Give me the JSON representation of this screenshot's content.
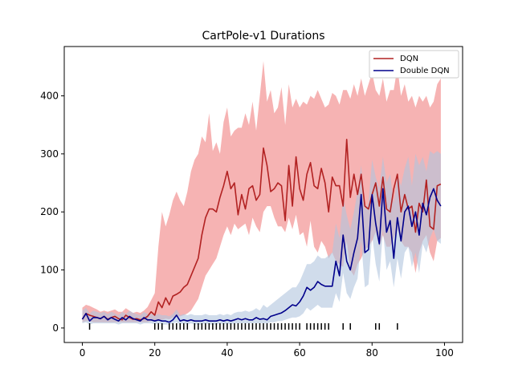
{
  "chart_data": {
    "type": "line",
    "title": "CartPole-v1 Durations",
    "xlabel": "",
    "ylabel": "",
    "xlim": [
      -5,
      105
    ],
    "ylim": [
      -25,
      485
    ],
    "xticks": [
      0,
      20,
      40,
      60,
      80,
      100
    ],
    "yticks": [
      0,
      100,
      200,
      300,
      400
    ],
    "grid": false,
    "legend_position": "top-right",
    "series": [
      {
        "name": "DQN",
        "color": "#b22222",
        "band_color": "#f08080",
        "x": [
          0,
          1,
          2,
          3,
          4,
          5,
          6,
          7,
          8,
          9,
          10,
          11,
          12,
          13,
          14,
          15,
          16,
          17,
          18,
          19,
          20,
          21,
          22,
          23,
          24,
          25,
          26,
          27,
          28,
          29,
          30,
          31,
          32,
          33,
          34,
          35,
          36,
          37,
          38,
          39,
          40,
          41,
          42,
          43,
          44,
          45,
          46,
          47,
          48,
          49,
          50,
          51,
          52,
          53,
          54,
          55,
          56,
          57,
          58,
          59,
          60,
          61,
          62,
          63,
          64,
          65,
          66,
          67,
          68,
          69,
          70,
          71,
          72,
          73,
          74,
          75,
          76,
          77,
          78,
          79,
          80,
          81,
          82,
          83,
          84,
          85,
          86,
          87,
          88,
          89,
          90,
          91,
          92,
          93,
          94,
          95,
          96,
          97,
          98,
          99
        ],
        "y": [
          15,
          25,
          22,
          20,
          18,
          16,
          20,
          15,
          18,
          20,
          16,
          14,
          22,
          18,
          15,
          16,
          14,
          16,
          20,
          28,
          22,
          45,
          35,
          52,
          40,
          55,
          58,
          62,
          70,
          75,
          90,
          105,
          120,
          160,
          190,
          205,
          205,
          200,
          225,
          245,
          270,
          240,
          250,
          195,
          230,
          205,
          240,
          245,
          220,
          230,
          310,
          280,
          235,
          240,
          250,
          245,
          185,
          280,
          210,
          295,
          240,
          220,
          265,
          285,
          245,
          240,
          275,
          250,
          200,
          260,
          245,
          245,
          210,
          325,
          225,
          265,
          230,
          265,
          210,
          205,
          230,
          250,
          210,
          260,
          205,
          200,
          240,
          265,
          200,
          230,
          205,
          210,
          165,
          215,
          200,
          255,
          175,
          170,
          245,
          248
        ],
        "upper": [
          35,
          40,
          38,
          35,
          32,
          28,
          30,
          28,
          30,
          32,
          28,
          28,
          34,
          30,
          26,
          28,
          26,
          30,
          36,
          48,
          60,
          140,
          200,
          175,
          195,
          220,
          235,
          220,
          210,
          235,
          270,
          290,
          300,
          330,
          320,
          370,
          305,
          320,
          300,
          355,
          380,
          330,
          340,
          345,
          345,
          370,
          350,
          390,
          340,
          400,
          460,
          390,
          410,
          370,
          380,
          415,
          350,
          420,
          380,
          395,
          380,
          390,
          385,
          400,
          395,
          410,
          395,
          380,
          385,
          405,
          400,
          385,
          410,
          410,
          395,
          420,
          400,
          430,
          400,
          420,
          440,
          410,
          400,
          430,
          390,
          410,
          410,
          450,
          400,
          420,
          390,
          400,
          380,
          400,
          390,
          400,
          380,
          390,
          420,
          430
        ],
        "lower": [
          10,
          12,
          12,
          10,
          10,
          10,
          10,
          10,
          10,
          10,
          10,
          10,
          10,
          10,
          10,
          10,
          10,
          10,
          10,
          12,
          12,
          14,
          14,
          16,
          15,
          18,
          20,
          20,
          22,
          25,
          30,
          40,
          50,
          70,
          90,
          100,
          110,
          120,
          140,
          160,
          175,
          160,
          180,
          170,
          175,
          180,
          160,
          190,
          175,
          165,
          200,
          210,
          210,
          190,
          175,
          175,
          165,
          190,
          170,
          195,
          160,
          165,
          140,
          185,
          140,
          130,
          150,
          140,
          120,
          130,
          115,
          110,
          105,
          150,
          100,
          90,
          110,
          120,
          135,
          140,
          150,
          165,
          140,
          160,
          140,
          140,
          155,
          170,
          150,
          140,
          140,
          130,
          95,
          130,
          150,
          160,
          130,
          115,
          150,
          155
        ]
      },
      {
        "name": "Double DQN",
        "color": "#00008b",
        "band_color": "#b0c4de",
        "x": [
          0,
          1,
          2,
          3,
          4,
          5,
          6,
          7,
          8,
          9,
          10,
          11,
          12,
          13,
          14,
          15,
          16,
          17,
          18,
          19,
          20,
          21,
          22,
          23,
          24,
          25,
          26,
          27,
          28,
          29,
          30,
          31,
          32,
          33,
          34,
          35,
          36,
          37,
          38,
          39,
          40,
          41,
          42,
          43,
          44,
          45,
          46,
          47,
          48,
          49,
          50,
          51,
          52,
          53,
          54,
          55,
          56,
          57,
          58,
          59,
          60,
          61,
          62,
          63,
          64,
          65,
          66,
          67,
          68,
          69,
          70,
          71,
          72,
          73,
          74,
          75,
          76,
          77,
          78,
          79,
          80,
          81,
          82,
          83,
          84,
          85,
          86,
          87,
          88,
          89,
          90,
          91,
          92,
          93,
          94,
          95,
          96,
          97,
          98,
          99
        ],
        "y": [
          15,
          25,
          12,
          18,
          18,
          16,
          20,
          14,
          18,
          15,
          12,
          18,
          14,
          20,
          16,
          14,
          12,
          18,
          14,
          14,
          12,
          14,
          12,
          12,
          10,
          14,
          22,
          12,
          14,
          12,
          14,
          12,
          12,
          12,
          14,
          12,
          12,
          12,
          14,
          12,
          14,
          12,
          14,
          16,
          14,
          16,
          14,
          14,
          18,
          15,
          16,
          14,
          20,
          22,
          24,
          26,
          30,
          35,
          40,
          38,
          45,
          55,
          70,
          65,
          70,
          80,
          75,
          72,
          72,
          72,
          115,
          90,
          160,
          115,
          100,
          130,
          155,
          230,
          130,
          135,
          230,
          180,
          145,
          240,
          165,
          185,
          120,
          190,
          150,
          200,
          210,
          175,
          200,
          160,
          215,
          195,
          225,
          240,
          220,
          210
        ],
        "upper": [
          30,
          35,
          25,
          30,
          28,
          26,
          28,
          24,
          28,
          25,
          22,
          28,
          24,
          30,
          26,
          24,
          22,
          28,
          24,
          24,
          22,
          24,
          22,
          22,
          20,
          24,
          32,
          22,
          24,
          22,
          24,
          22,
          22,
          22,
          24,
          22,
          22,
          22,
          24,
          22,
          24,
          22,
          26,
          28,
          28,
          30,
          28,
          30,
          34,
          30,
          40,
          35,
          40,
          45,
          50,
          55,
          60,
          65,
          70,
          70,
          80,
          95,
          110,
          110,
          115,
          125,
          120,
          120,
          125,
          130,
          180,
          155,
          225,
          195,
          170,
          200,
          235,
          280,
          205,
          215,
          290,
          260,
          240,
          295,
          250,
          265,
          215,
          265,
          245,
          275,
          295,
          245,
          300,
          280,
          295,
          270,
          305,
          300,
          305,
          300
        ],
        "lower": [
          8,
          10,
          6,
          8,
          8,
          8,
          8,
          8,
          8,
          8,
          6,
          8,
          8,
          8,
          8,
          8,
          6,
          8,
          8,
          8,
          6,
          8,
          6,
          6,
          6,
          8,
          10,
          6,
          8,
          6,
          8,
          6,
          6,
          6,
          8,
          6,
          6,
          6,
          8,
          6,
          8,
          6,
          8,
          8,
          8,
          8,
          8,
          8,
          8,
          8,
          8,
          8,
          10,
          10,
          12,
          12,
          14,
          16,
          18,
          18,
          20,
          25,
          35,
          30,
          35,
          40,
          35,
          35,
          35,
          35,
          60,
          45,
          95,
          60,
          50,
          70,
          85,
          150,
          70,
          75,
          160,
          110,
          80,
          170,
          100,
          115,
          70,
          120,
          85,
          130,
          140,
          105,
          130,
          95,
          145,
          130,
          155,
          170,
          150,
          145
        ]
      }
    ],
    "rug_marks": [
      2,
      20,
      21,
      22,
      24,
      25,
      26,
      27,
      28,
      29,
      31,
      32,
      33,
      34,
      35,
      36,
      37,
      38,
      39,
      40,
      41,
      42,
      43,
      44,
      45,
      46,
      47,
      48,
      49,
      50,
      51,
      52,
      53,
      54,
      55,
      56,
      57,
      58,
      59,
      60,
      62,
      63,
      64,
      65,
      66,
      67,
      68,
      72,
      74,
      81,
      82,
      87
    ]
  }
}
